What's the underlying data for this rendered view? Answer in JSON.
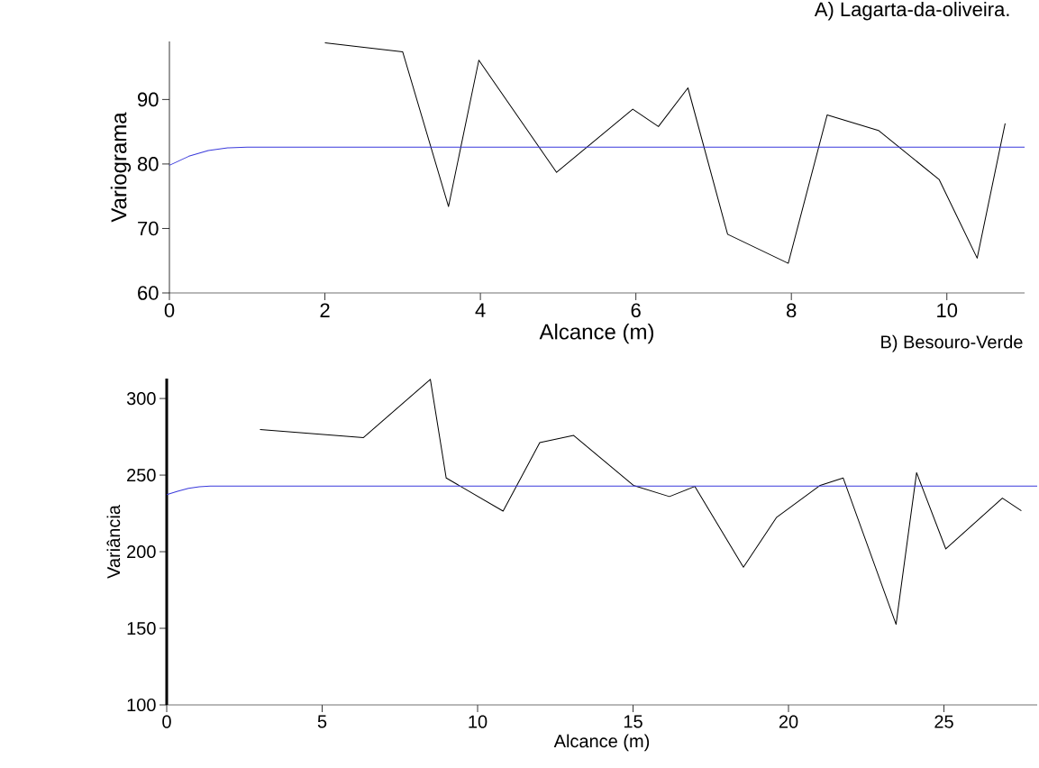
{
  "chart_data": [
    {
      "type": "line",
      "title": "A) Lagarta-da-oliveira.",
      "xlabel": "Alcance (m)",
      "ylabel": "Variograma",
      "xlim": [
        0,
        11
      ],
      "ylim": [
        60,
        99
      ],
      "xticks": [
        0,
        2,
        4,
        6,
        8,
        10
      ],
      "yticks": [
        60,
        70,
        80,
        90
      ],
      "line_style": "solid",
      "series": [
        {
          "color": "#000000",
          "x": [
            2.0,
            3.0,
            3.59,
            3.98,
            4.98,
            5.96,
            6.29,
            6.67,
            7.18,
            7.96,
            8.46,
            9.12,
            9.9,
            10.39,
            10.75
          ],
          "values": [
            98.8,
            97.4,
            73.4,
            96.1,
            78.7,
            88.5,
            85.8,
            91.8,
            69.1,
            64.6,
            87.6,
            85.2,
            77.6,
            65.4,
            86.3
          ]
        },
        {
          "color": "#3a3adb",
          "x": [
            0,
            0.25,
            0.5,
            0.75,
            1.0,
            11
          ],
          "values": [
            79.8,
            81.2,
            82.1,
            82.5,
            82.6,
            82.6
          ]
        }
      ]
    },
    {
      "type": "line",
      "title": "B) Besouro-Verde",
      "xlabel": "Alcance (m)",
      "ylabel": "Variância",
      "xlim": [
        0,
        28
      ],
      "ylim": [
        100,
        313
      ],
      "xticks": [
        0,
        5,
        10,
        15,
        20,
        25
      ],
      "yticks": [
        100,
        150,
        200,
        250,
        300
      ],
      "line_style": "solid",
      "series": [
        {
          "color": "#000000",
          "x": [
            3.0,
            6.33,
            8.48,
            8.99,
            10.82,
            12.0,
            13.09,
            15.01,
            16.17,
            16.99,
            18.55,
            19.62,
            21.02,
            21.76,
            23.46,
            24.12,
            25.06,
            26.88,
            27.49
          ],
          "values": [
            279.8,
            274.5,
            312.5,
            248.1,
            226.5,
            271.2,
            275.9,
            243.3,
            236.0,
            242.6,
            189.9,
            222.5,
            243.3,
            248.1,
            152.6,
            251.6,
            201.8,
            235.0,
            226.7
          ]
        },
        {
          "color": "#3a3adb",
          "x": [
            0,
            0.35,
            0.7,
            1.05,
            1.4,
            28
          ],
          "values": [
            237.3,
            239.5,
            241.3,
            242.4,
            242.8,
            242.8
          ]
        }
      ]
    }
  ]
}
